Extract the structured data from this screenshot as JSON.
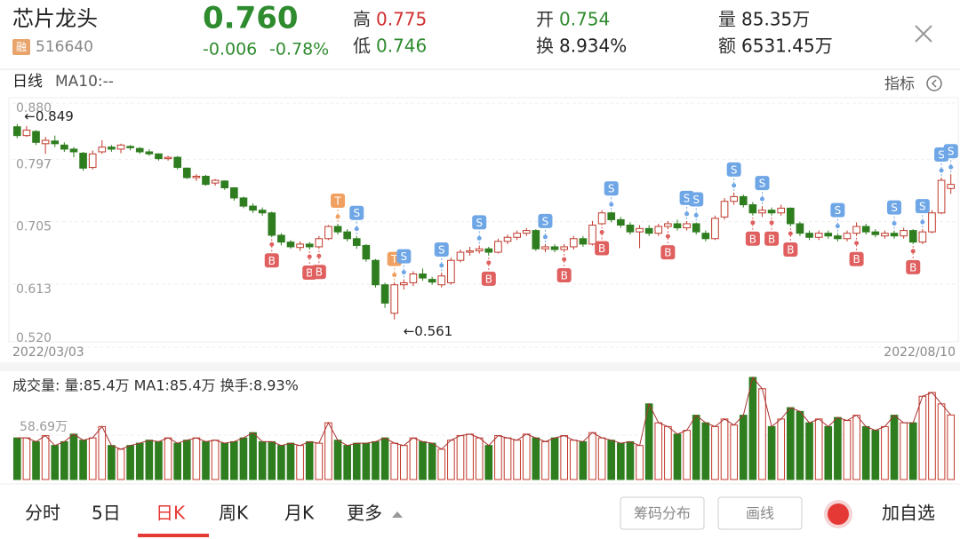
{
  "header": {
    "name": "芯片龙头",
    "tag": "融",
    "code": "516640",
    "price": "0.760",
    "change": "-0.006",
    "change_pct": "-0.78%",
    "high_label": "高",
    "high": "0.775",
    "low_label": "低",
    "low": "0.746",
    "open_label": "开",
    "open": "0.754",
    "turnover_label": "换",
    "turnover": "8.934%",
    "volume_label": "量",
    "volume": "85.35万",
    "amount_label": "额",
    "amount": "6531.45万"
  },
  "toolbar": {
    "period": "日线",
    "ma": "MA10:--",
    "indicator": "指标"
  },
  "chart_data": {
    "type": "candlestick",
    "categories": [
      "2022/03/03",
      null,
      null,
      null,
      null,
      null,
      null,
      null,
      null,
      null,
      null,
      null,
      null,
      null,
      null,
      null,
      null,
      null,
      null,
      null,
      null,
      null,
      null,
      null,
      null,
      null,
      null,
      null,
      null,
      null,
      null,
      null,
      null,
      null,
      null,
      null,
      null,
      null,
      null,
      null,
      null,
      null,
      null,
      null,
      null,
      null,
      null,
      null,
      null,
      null,
      null,
      null,
      null,
      null,
      null,
      null,
      null,
      null,
      null,
      null,
      null,
      null,
      null,
      null,
      null,
      null,
      null,
      null,
      null,
      null,
      null,
      null,
      null,
      null,
      null,
      null,
      null,
      null,
      null,
      null,
      null,
      null,
      null,
      null,
      null,
      null,
      null,
      null,
      null,
      null,
      null,
      null,
      null,
      null,
      null,
      null,
      null,
      null,
      null,
      "2022/08/10"
    ],
    "open": [
      0.845,
      0.832,
      0.838,
      0.82,
      0.824,
      0.818,
      0.812,
      0.806,
      0.785,
      0.808,
      0.815,
      0.812,
      0.816,
      0.813,
      0.808,
      0.805,
      0.798,
      0.8,
      0.784,
      0.77,
      0.772,
      0.762,
      0.765,
      0.755,
      0.74,
      0.728,
      0.722,
      0.718,
      0.685,
      0.675,
      0.667,
      0.672,
      0.668,
      0.68,
      0.698,
      0.69,
      0.68,
      0.67,
      0.648,
      0.612,
      0.57,
      0.612,
      0.615,
      0.628,
      0.62,
      0.612,
      0.615,
      0.648,
      0.66,
      0.662,
      0.665,
      0.66,
      0.676,
      0.682,
      0.688,
      0.692,
      0.665,
      0.668,
      0.664,
      0.668,
      0.68,
      0.672,
      0.702,
      0.718,
      0.708,
      0.7,
      0.69,
      0.695,
      0.688,
      0.698,
      0.702,
      0.696,
      0.702,
      0.688,
      0.68,
      0.712,
      0.735,
      0.742,
      0.73,
      0.718,
      0.722,
      0.718,
      0.725,
      0.702,
      0.688,
      0.682,
      0.688,
      0.684,
      0.68,
      0.688,
      0.698,
      0.69,
      0.684,
      0.688,
      0.684,
      0.692,
      0.675,
      0.69,
      0.718,
      0.754
    ],
    "close": [
      0.832,
      0.84,
      0.822,
      0.825,
      0.82,
      0.812,
      0.808,
      0.784,
      0.805,
      0.815,
      0.812,
      0.818,
      0.814,
      0.808,
      0.805,
      0.798,
      0.8,
      0.785,
      0.77,
      0.772,
      0.76,
      0.766,
      0.755,
      0.74,
      0.728,
      0.722,
      0.718,
      0.685,
      0.675,
      0.668,
      0.672,
      0.668,
      0.68,
      0.698,
      0.69,
      0.68,
      0.67,
      0.65,
      0.612,
      0.585,
      0.612,
      0.615,
      0.628,
      0.622,
      0.616,
      0.625,
      0.648,
      0.66,
      0.662,
      0.665,
      0.66,
      0.676,
      0.682,
      0.688,
      0.692,
      0.665,
      0.668,
      0.664,
      0.668,
      0.68,
      0.672,
      0.7,
      0.718,
      0.708,
      0.7,
      0.69,
      0.695,
      0.688,
      0.698,
      0.702,
      0.696,
      0.702,
      0.69,
      0.68,
      0.71,
      0.735,
      0.742,
      0.73,
      0.718,
      0.722,
      0.718,
      0.725,
      0.702,
      0.688,
      0.682,
      0.688,
      0.684,
      0.68,
      0.688,
      0.698,
      0.69,
      0.686,
      0.688,
      0.684,
      0.692,
      0.675,
      0.69,
      0.718,
      0.766,
      0.76
    ],
    "high": [
      0.849,
      0.846,
      0.84,
      0.83,
      0.832,
      0.822,
      0.815,
      0.808,
      0.81,
      0.825,
      0.818,
      0.82,
      0.818,
      0.815,
      0.812,
      0.806,
      0.802,
      0.802,
      0.785,
      0.775,
      0.774,
      0.768,
      0.766,
      0.756,
      0.742,
      0.732,
      0.726,
      0.72,
      0.688,
      0.678,
      0.676,
      0.675,
      0.684,
      0.7,
      0.702,
      0.694,
      0.684,
      0.672,
      0.65,
      0.615,
      0.616,
      0.62,
      0.632,
      0.636,
      0.624,
      0.63,
      0.652,
      0.664,
      0.668,
      0.67,
      0.668,
      0.68,
      0.686,
      0.692,
      0.696,
      0.694,
      0.672,
      0.672,
      0.672,
      0.684,
      0.684,
      0.706,
      0.722,
      0.72,
      0.712,
      0.704,
      0.7,
      0.7,
      0.702,
      0.706,
      0.708,
      0.706,
      0.704,
      0.692,
      0.714,
      0.74,
      0.748,
      0.745,
      0.734,
      0.728,
      0.726,
      0.73,
      0.726,
      0.705,
      0.692,
      0.692,
      0.692,
      0.688,
      0.692,
      0.704,
      0.702,
      0.694,
      0.692,
      0.692,
      0.696,
      0.694,
      0.694,
      0.722,
      0.77,
      0.775
    ],
    "low": [
      0.828,
      0.83,
      0.818,
      0.805,
      0.815,
      0.808,
      0.8,
      0.78,
      0.782,
      0.805,
      0.808,
      0.806,
      0.81,
      0.805,
      0.802,
      0.795,
      0.795,
      0.782,
      0.768,
      0.765,
      0.758,
      0.758,
      0.752,
      0.736,
      0.725,
      0.718,
      0.714,
      0.682,
      0.67,
      0.665,
      0.662,
      0.664,
      0.665,
      0.678,
      0.686,
      0.676,
      0.665,
      0.646,
      0.608,
      0.578,
      0.561,
      0.605,
      0.61,
      0.618,
      0.612,
      0.608,
      0.612,
      0.645,
      0.655,
      0.658,
      0.655,
      0.658,
      0.672,
      0.678,
      0.684,
      0.662,
      0.66,
      0.66,
      0.66,
      0.664,
      0.668,
      0.67,
      0.7,
      0.704,
      0.696,
      0.686,
      0.666,
      0.684,
      0.684,
      0.694,
      0.692,
      0.692,
      0.686,
      0.676,
      0.678,
      0.708,
      0.73,
      0.726,
      0.714,
      0.712,
      0.714,
      0.714,
      0.698,
      0.684,
      0.678,
      0.678,
      0.68,
      0.676,
      0.676,
      0.684,
      0.686,
      0.682,
      0.68,
      0.68,
      0.68,
      0.672,
      0.672,
      0.688,
      0.716,
      0.746
    ],
    "signals": [
      null,
      null,
      null,
      null,
      null,
      null,
      null,
      null,
      null,
      null,
      null,
      null,
      null,
      null,
      null,
      null,
      null,
      null,
      null,
      null,
      null,
      null,
      null,
      null,
      null,
      null,
      null,
      "B",
      null,
      null,
      null,
      "B",
      "B",
      null,
      "T",
      null,
      "S",
      null,
      null,
      null,
      "T",
      "S",
      null,
      null,
      null,
      "S",
      null,
      null,
      null,
      "S",
      "B",
      null,
      null,
      null,
      null,
      null,
      "S",
      null,
      "B",
      null,
      null,
      null,
      "B",
      "S",
      null,
      null,
      null,
      null,
      null,
      "B",
      null,
      "S",
      "S",
      null,
      null,
      null,
      "S",
      null,
      "B",
      "S",
      "B",
      null,
      "B",
      null,
      null,
      null,
      null,
      "S",
      null,
      "B",
      null,
      null,
      null,
      "S",
      null,
      "B",
      "S",
      null,
      "S",
      "S"
    ],
    "annotations": [
      "←0.849",
      "←0.561"
    ],
    "ylim": [
      0.52,
      0.88
    ],
    "yticks": [
      {
        "value": 0.88,
        "label": "0.880"
      },
      0.797,
      0.705,
      0.613,
      {
        "value": 0.52,
        "label": "0.520"
      }
    ],
    "grid": true,
    "up_color": "#c0392b",
    "down_color": "#2e7d1f",
    "volume": {
      "label": "成交量: 量:85.4万 MA1:85.4万 换手:8.93%",
      "values": [
        55,
        55,
        50,
        58,
        45,
        50,
        60,
        52,
        55,
        70,
        45,
        40,
        45,
        48,
        52,
        50,
        55,
        48,
        52,
        55,
        50,
        52,
        48,
        50,
        55,
        62,
        50,
        50,
        45,
        48,
        45,
        50,
        48,
        75,
        52,
        45,
        48,
        48,
        50,
        55,
        48,
        45,
        55,
        50,
        48,
        40,
        52,
        58,
        60,
        55,
        45,
        58,
        55,
        52,
        60,
        55,
        50,
        55,
        58,
        52,
        50,
        62,
        55,
        52,
        48,
        50,
        45,
        100,
        75,
        70,
        60,
        65,
        85,
        75,
        70,
        80,
        72,
        85,
        135,
        120,
        70,
        80,
        95,
        90,
        75,
        80,
        70,
        82,
        78,
        85,
        70,
        65,
        70,
        85,
        75,
        75,
        110,
        115,
        100,
        85.35
      ],
      "ylim": [
        0,
        135
      ],
      "yticks": [
        {
          "value": 58.69,
          "label": "58.69万"
        }
      ]
    }
  },
  "tabs": [
    "分时",
    "5日",
    "日K",
    "周K",
    "月K",
    "更多"
  ],
  "buttons": {
    "chips": "筹码分布",
    "draw": "画线",
    "add": "加自选"
  }
}
